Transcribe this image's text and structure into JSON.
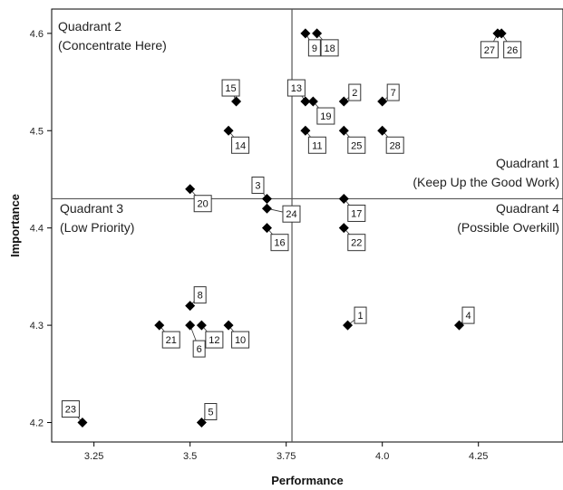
{
  "chart_data": {
    "type": "scatter",
    "xlabel": "Performance",
    "ylabel": "Importance",
    "xlim": [
      3.14,
      4.47
    ],
    "ylim": [
      4.18,
      4.625
    ],
    "xticks": [
      "3.25",
      "3.5",
      "3.75",
      "4.0",
      "4.25"
    ],
    "yticks": [
      "4.2",
      "4.3",
      "4.4",
      "4.5",
      "4.6"
    ],
    "grid": false,
    "reference_lines": {
      "x": 3.765,
      "y": 4.43
    },
    "quadrants": [
      {
        "title": "Quadrant 2",
        "subtitle": "(Concentrate Here)",
        "pos": "top-left"
      },
      {
        "title": "Quadrant 1",
        "subtitle": "(Keep Up the Good Work)",
        "pos": "top-right"
      },
      {
        "title": "Quadrant 3",
        "subtitle": "(Low Priority)",
        "pos": "bottom-left"
      },
      {
        "title": "Quadrant 4",
        "subtitle": "(Possible Overkill)",
        "pos": "bottom-right"
      }
    ],
    "points": [
      {
        "id": "1",
        "x": 3.91,
        "y": 4.3
      },
      {
        "id": "2",
        "x": 3.9,
        "y": 4.53
      },
      {
        "id": "3",
        "x": 3.7,
        "y": 4.43
      },
      {
        "id": "4",
        "x": 4.2,
        "y": 4.3
      },
      {
        "id": "5",
        "x": 3.53,
        "y": 4.2
      },
      {
        "id": "6",
        "x": 3.5,
        "y": 4.3
      },
      {
        "id": "7",
        "x": 4.0,
        "y": 4.53
      },
      {
        "id": "8",
        "x": 3.5,
        "y": 4.32
      },
      {
        "id": "9",
        "x": 3.8,
        "y": 4.6
      },
      {
        "id": "10",
        "x": 3.6,
        "y": 4.3
      },
      {
        "id": "11",
        "x": 3.8,
        "y": 4.5
      },
      {
        "id": "12",
        "x": 3.53,
        "y": 4.3
      },
      {
        "id": "13",
        "x": 3.8,
        "y": 4.53
      },
      {
        "id": "14",
        "x": 3.6,
        "y": 4.5
      },
      {
        "id": "15",
        "x": 3.62,
        "y": 4.53
      },
      {
        "id": "16",
        "x": 3.7,
        "y": 4.4
      },
      {
        "id": "17",
        "x": 3.9,
        "y": 4.43
      },
      {
        "id": "18",
        "x": 3.83,
        "y": 4.6
      },
      {
        "id": "19",
        "x": 3.82,
        "y": 4.53
      },
      {
        "id": "20",
        "x": 3.5,
        "y": 4.44
      },
      {
        "id": "21",
        "x": 3.42,
        "y": 4.3
      },
      {
        "id": "22",
        "x": 3.9,
        "y": 4.4
      },
      {
        "id": "23",
        "x": 3.22,
        "y": 4.2
      },
      {
        "id": "24",
        "x": 3.7,
        "y": 4.42
      },
      {
        "id": "25",
        "x": 3.9,
        "y": 4.5
      },
      {
        "id": "26",
        "x": 4.31,
        "y": 4.6
      },
      {
        "id": "27",
        "x": 4.3,
        "y": 4.6
      },
      {
        "id": "28",
        "x": 4.0,
        "y": 4.5
      }
    ],
    "marker_color": "#000000",
    "line_color": "#555555"
  }
}
